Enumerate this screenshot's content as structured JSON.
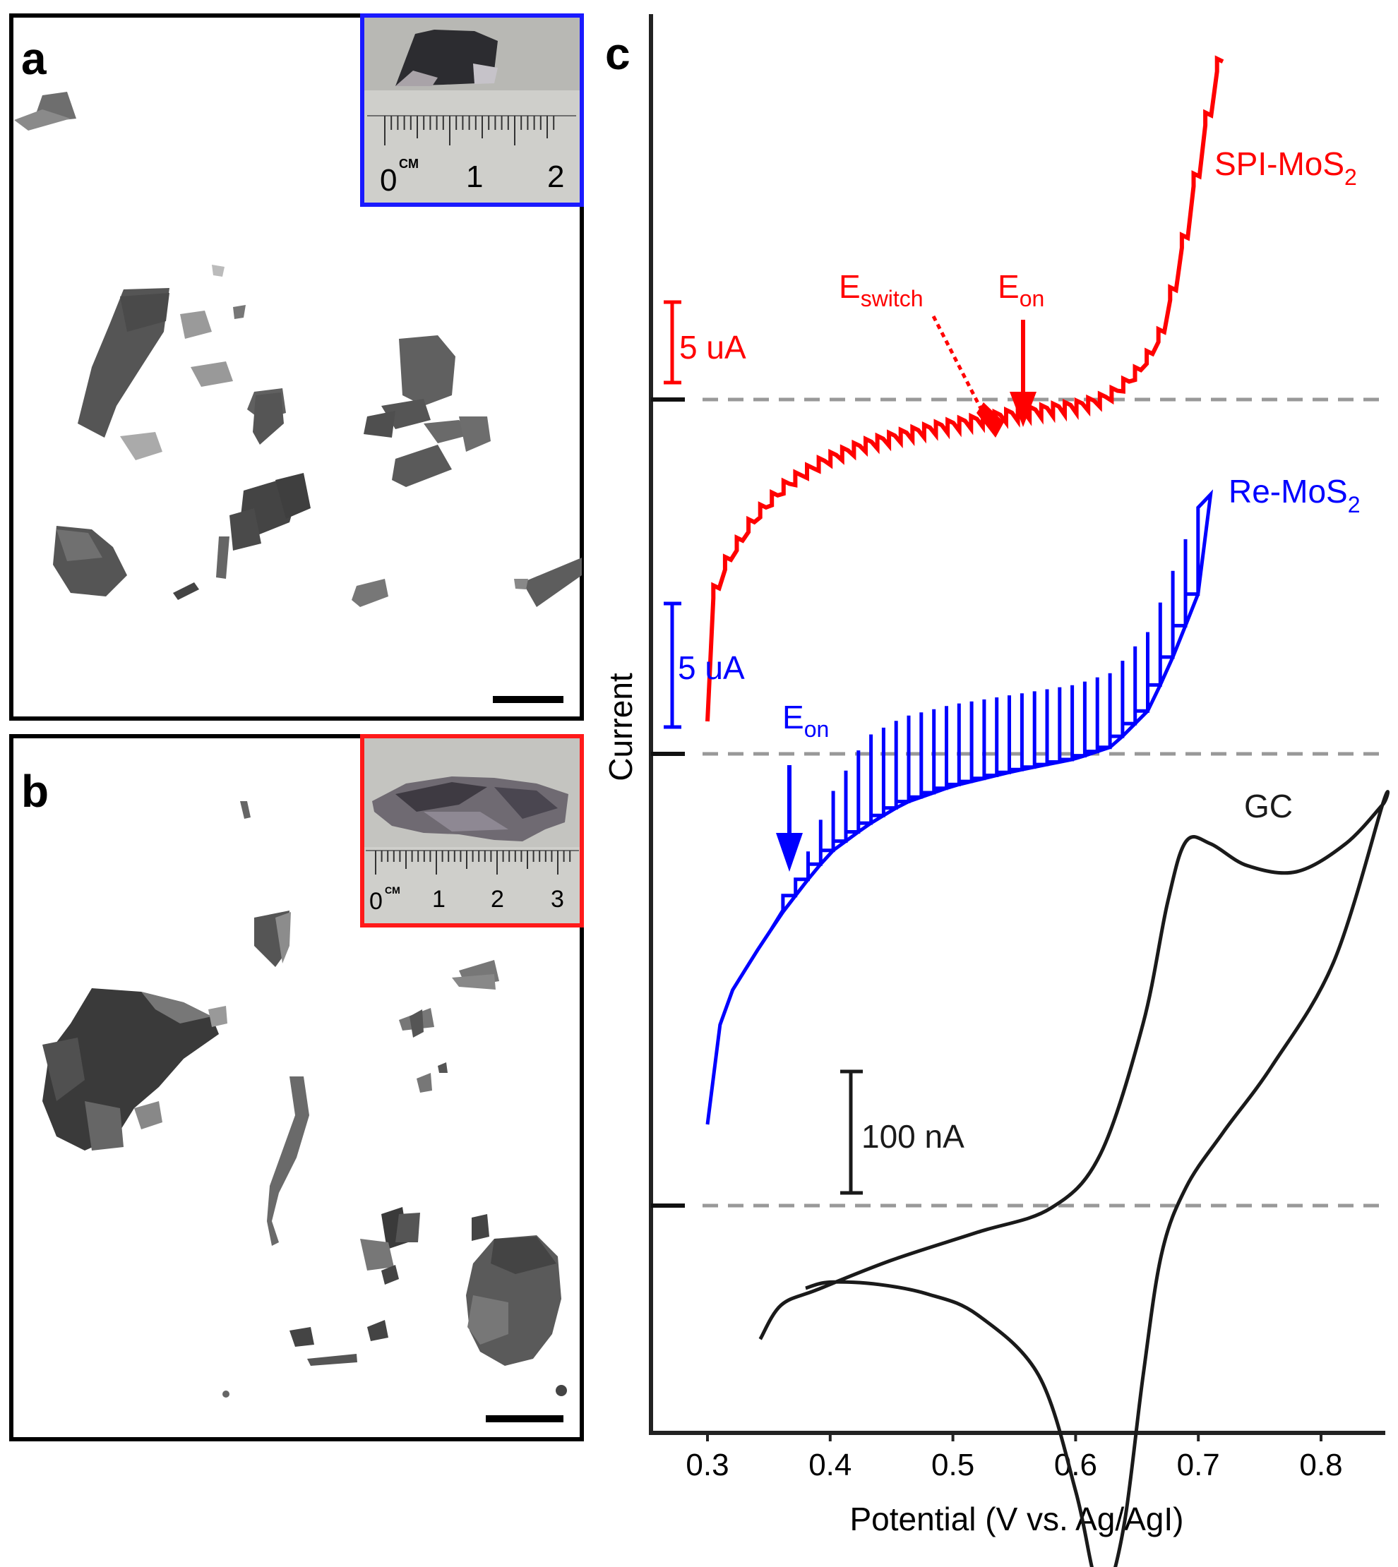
{
  "panels": {
    "a": {
      "letter": "a",
      "inset_color": "#1a1aff",
      "inset_ruler_ticks": [
        "0",
        "CM",
        "1",
        "2"
      ]
    },
    "b": {
      "letter": "b",
      "inset_color": "#ff1a1a",
      "inset_ruler_ticks": [
        "0",
        "CM",
        "1",
        "2",
        "3"
      ]
    },
    "c": {
      "letter": "c"
    }
  },
  "colors": {
    "spi": "#ff0000",
    "re": "#0000ff",
    "gc": "#1a1a1a",
    "baseline": "#999999"
  },
  "chart_data": {
    "type": "line",
    "xlabel": "Potential (V vs. Ag/AgI)",
    "ylabel": "Current",
    "xlim": [
      0.25,
      0.86
    ],
    "xticks": [
      "0.3",
      "0.4",
      "0.5",
      "0.6",
      "0.7",
      "0.8"
    ],
    "series": [
      {
        "name": "SPI-MoS",
        "name_sub": "2",
        "color": "#ff0000",
        "style": "staircase",
        "baseline_unit": "uA",
        "scale_bar": "5 uA",
        "x": [
          0.3,
          0.305,
          0.31,
          0.32,
          0.33,
          0.34,
          0.35,
          0.37,
          0.4,
          0.43,
          0.46,
          0.49,
          0.52,
          0.55,
          0.58,
          0.61,
          0.63,
          0.65,
          0.67,
          0.68,
          0.69,
          0.7,
          0.71,
          0.72
        ],
        "y": [
          -20.0,
          -14.0,
          -11.5,
          -9.8,
          -8.6,
          -7.4,
          -6.5,
          -5.0,
          -3.6,
          -2.7,
          -2.1,
          -1.6,
          -1.2,
          -0.8,
          -0.5,
          -0.2,
          0.3,
          1.5,
          3.6,
          6.2,
          9.5,
          13.5,
          17.5,
          21.0
        ],
        "annotations": [
          {
            "text": "E",
            "sub": "switch",
            "x": 0.54,
            "style": "dotted-arrow"
          },
          {
            "text": "E",
            "sub": "on",
            "x": 0.557,
            "style": "solid-arrow"
          }
        ]
      },
      {
        "name": "Re-MoS",
        "name_sub": "2",
        "color": "#0000ff",
        "style": "staircase-cv",
        "baseline_unit": "uA",
        "scale_bar": "5 uA",
        "x": [
          0.3,
          0.305,
          0.31,
          0.32,
          0.34,
          0.36,
          0.38,
          0.4,
          0.43,
          0.46,
          0.5,
          0.55,
          0.6,
          0.63,
          0.66,
          0.68,
          0.7,
          0.71
        ],
        "y_forward": [
          -15.0,
          -12.5,
          -11.0,
          -9.6,
          -8.0,
          -6.5,
          -5.2,
          -4.0,
          -2.9,
          -2.0,
          -1.3,
          -0.7,
          -0.2,
          0.3,
          1.8,
          4.0,
          6.5,
          10.5
        ],
        "y_reverse": [
          -15.0,
          -12.5,
          -11.0,
          -9.6,
          -8.0,
          -6.5,
          -4.2,
          -1.7,
          0.7,
          1.5,
          2.0,
          2.4,
          2.8,
          3.3,
          5.0,
          7.5,
          10.0,
          10.5
        ],
        "annotations": [
          {
            "text": "E",
            "sub": "on",
            "x": 0.366,
            "style": "solid-arrow"
          }
        ]
      },
      {
        "name": "GC",
        "color": "#1a1a1a",
        "style": "cyclic-voltammogram",
        "baseline_unit": "nA",
        "scale_bar": "100 nA",
        "forward": {
          "x": [
            0.343,
            0.36,
            0.39,
            0.45,
            0.52,
            0.58,
            0.62,
            0.655,
            0.675,
            0.69,
            0.71,
            0.74,
            0.78,
            0.82,
            0.85
          ],
          "y": [
            -110,
            -82,
            -69,
            -45,
            -22,
            -2,
            42,
            150,
            250,
            300,
            298,
            280,
            275,
            298,
            330
          ]
        },
        "reverse": {
          "x": [
            0.85,
            0.81,
            0.76,
            0.72,
            0.69,
            0.67,
            0.655,
            0.64,
            0.625,
            0.615,
            0.6,
            0.57,
            0.52,
            0.48,
            0.44,
            0.4,
            0.38
          ],
          "y": [
            330,
            200,
            115,
            60,
            15,
            -40,
            -140,
            -260,
            -320,
            -305,
            -235,
            -140,
            -90,
            -73,
            -65,
            -63,
            -68
          ]
        }
      }
    ]
  }
}
